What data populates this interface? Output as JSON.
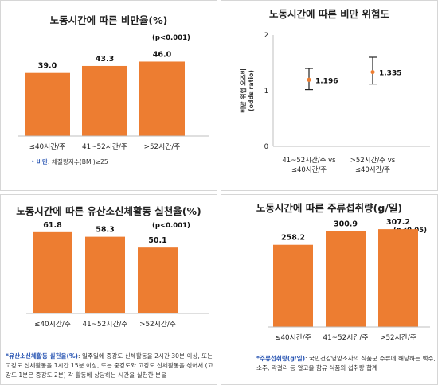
{
  "colors": {
    "bar": "#ed7d31",
    "axis": "#bfbfbf",
    "note_key": "#2a56b3"
  },
  "panels": [
    {
      "title": "노동시간에 따른 비만율(%)",
      "pvalue": "(p<0.001)",
      "note": {
        "bullet": "•",
        "key": "비만",
        "text": ": 체질량지수(BMI)≥25"
      }
    },
    {
      "title": "노동시간에 따른 비만 위험도"
    },
    {
      "title": "노동시간에 따른 유산소신체활동 실천율(%)",
      "pvalue": "(p<0.001)",
      "note": {
        "key": "*유산소신체활동 실천율(%)",
        "text": ": 일주일에 중강도 신체활동을 2시간 30분 이상, 또는 고강도 신체활동을 1시간 15분 이상, 또는 중강도와 고강도 신체활동을 섞어서 (고강도 1분은 중강도 2분) 각 활동에 상당하는 시간을 실천한 분율"
      }
    },
    {
      "title": "노동시간에 따른 주류섭취량(g/일)",
      "pvalue": "(p<0.05)",
      "note": {
        "key": "*주류섭취량(g/일)",
        "text": ": 국민건강영양조사의 식품군 주류에 해당하는 맥주, 소주, 막걸리 등 알코올 함유 식품의 섭취량 합계"
      }
    }
  ],
  "chart_data": [
    {
      "type": "bar",
      "title": "노동시간에 따른 비만율(%)",
      "categories": [
        "≤40시간/주",
        "41~52시간/주",
        ">52시간/주"
      ],
      "values": [
        39.0,
        43.3,
        46.0
      ],
      "value_labels": [
        "39.0",
        "43.3",
        "46.0"
      ],
      "ylim": [
        0,
        60
      ]
    },
    {
      "type": "scatter",
      "title": "노동시간에 따른 비만 위험도",
      "ylabel": "비만 위험 오즈비 (odds ratio)",
      "ylabel_main": "비만 위험 오즈비",
      "ylabel_sub": "(odds ratio)",
      "ylim": [
        0,
        2
      ],
      "yticks": [
        "0",
        "1",
        "2"
      ],
      "categories": [
        [
          "41~52시간/주 vs",
          "≤40시간/주"
        ],
        [
          ">52시간/주 vs",
          "≤40시간/주"
        ]
      ],
      "values": [
        1.196,
        1.335
      ],
      "value_labels": [
        "1.196",
        "1.335"
      ],
      "ci_lower": [
        1.02,
        1.12
      ],
      "ci_upper": [
        1.4,
        1.6
      ]
    },
    {
      "type": "bar",
      "title": "노동시간에 따른 유산소신체활동 실천율(%)",
      "categories": [
        "≤40시간/주",
        "41~52시간/주",
        ">52시간/주"
      ],
      "values": [
        61.8,
        58.3,
        50.1
      ],
      "value_labels": [
        "61.8",
        "58.3",
        "50.1"
      ],
      "ylim": [
        0,
        75
      ]
    },
    {
      "type": "bar",
      "title": "노동시간에 따른 주류섭취량(g/일)",
      "categories": [
        "≤40시간/주",
        "41~52시간/주",
        ">52시간/주"
      ],
      "values": [
        258.2,
        300.9,
        307.2
      ],
      "value_labels": [
        "258.2",
        "300.9",
        "307.2"
      ],
      "ylim": [
        0,
        390
      ]
    }
  ]
}
